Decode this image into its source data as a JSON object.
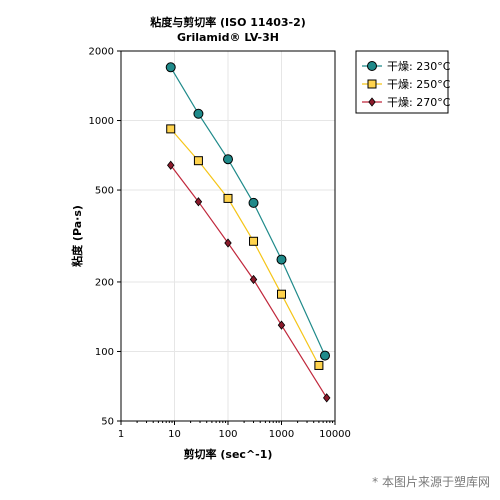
{
  "chart_data": {
    "type": "line",
    "title": [
      "粘度与剪切率 (ISO 11403-2)",
      "Grilamid® LV-3H"
    ],
    "xlabel": "剪切率 (sec^-1)",
    "ylabel": "粘度 (Pa·s)",
    "xscale": "log",
    "yscale": "log",
    "xlim": [
      1,
      10000
    ],
    "ylim": [
      50,
      2000
    ],
    "x_ticks": [
      1,
      10,
      100,
      1000,
      10000
    ],
    "x_tick_labels": [
      "1",
      "10",
      "100",
      "1000",
      "10000"
    ],
    "y_ticks": [
      50,
      100,
      200,
      500,
      1000,
      2000
    ],
    "y_tick_labels": [
      "50",
      "100",
      "200",
      "500",
      "1000",
      "2000"
    ],
    "grid": true,
    "legend_position": "top-right (outside plot)",
    "series": [
      {
        "name": "干燥: 230°C",
        "marker": "circle",
        "color": "#1f8a8a",
        "x": [
          8.5,
          28,
          100,
          300,
          1000,
          6500
        ],
        "y": [
          1700,
          1070,
          680,
          440,
          250,
          96
        ]
      },
      {
        "name": "干燥: 250°C",
        "marker": "square",
        "color": "#ffd34d",
        "line_color": "#f5c518",
        "x": [
          8.5,
          28,
          100,
          300,
          1000,
          5000
        ],
        "y": [
          920,
          670,
          460,
          300,
          177,
          87
        ]
      },
      {
        "name": "干燥: 270°C",
        "marker": "diamond",
        "color": "#8b1a2b",
        "line_color": "#c0283c",
        "x": [
          8.5,
          28,
          100,
          300,
          1000,
          7000
        ],
        "y": [
          640,
          445,
          295,
          205,
          130,
          63
        ]
      }
    ]
  },
  "watermark": "* 本图片来源于塑库网"
}
